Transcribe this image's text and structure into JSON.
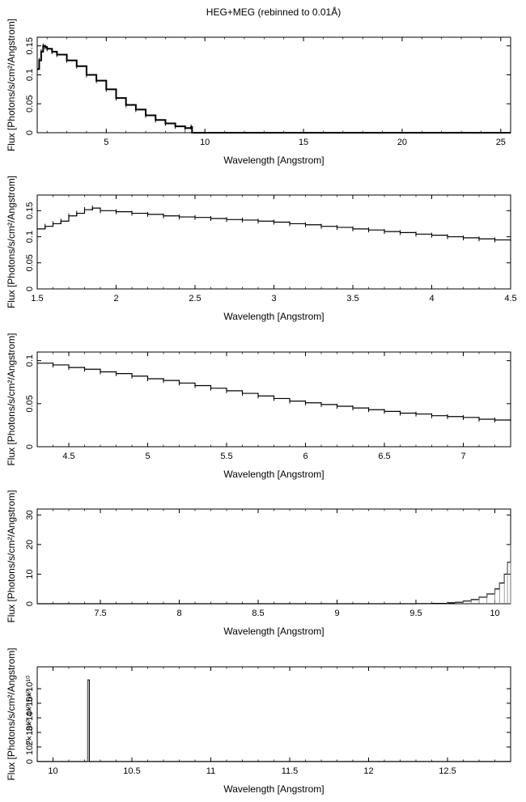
{
  "title": "HEG+MEG (rebinned to 0.01Å)",
  "chart_data": [
    {
      "type": "line",
      "xlabel": "Wavelength [Angstrom]",
      "ylabel": "Flux [Photons/s/cm²/Angstrom]",
      "xlim": [
        1.5,
        25.5
      ],
      "ylim": [
        0,
        0.165
      ],
      "xticks": [
        5,
        10,
        15,
        20,
        25
      ],
      "yticks": [
        0,
        0.05,
        0.1,
        0.15
      ],
      "ytick_labels": [
        "0",
        "0.05",
        "0.1",
        "0.15"
      ],
      "grid": false,
      "series": [
        {
          "x": [
            1.5,
            1.6,
            1.7,
            1.8,
            1.9,
            2.0,
            2.25,
            2.5,
            3.0,
            3.5,
            4.0,
            4.5,
            5.0,
            5.5,
            6.0,
            6.5,
            7.0,
            7.5,
            8.0,
            8.5,
            9.0,
            9.3,
            9.35,
            25.5
          ],
          "y": [
            0.11,
            0.125,
            0.14,
            0.15,
            0.148,
            0.145,
            0.14,
            0.135,
            0.125,
            0.115,
            0.1,
            0.09,
            0.075,
            0.06,
            0.048,
            0.04,
            0.03,
            0.022,
            0.016,
            0.011,
            0.008,
            0.01,
            0.0,
            0.0
          ]
        }
      ]
    },
    {
      "type": "line",
      "xlabel": "Wavelength [Angstrom]",
      "ylabel": "Flux [Photons/s/cm²/Angstrom]",
      "xlim": [
        1.5,
        4.5
      ],
      "ylim": [
        0,
        0.18
      ],
      "xticks": [
        1.5,
        2,
        2.5,
        3,
        3.5,
        4,
        4.5
      ],
      "yticks": [
        0,
        0.05,
        0.1,
        0.15
      ],
      "ytick_labels": [
        "0",
        "0.05",
        "0.1",
        "0.15"
      ],
      "grid": false,
      "series": [
        {
          "x": [
            1.5,
            1.55,
            1.6,
            1.65,
            1.7,
            1.75,
            1.8,
            1.85,
            1.9,
            2.0,
            2.1,
            2.2,
            2.3,
            2.4,
            2.5,
            2.6,
            2.7,
            2.8,
            2.9,
            3.0,
            3.1,
            3.2,
            3.3,
            3.4,
            3.5,
            3.6,
            3.7,
            3.8,
            3.9,
            4.0,
            4.1,
            4.2,
            4.3,
            4.4,
            4.5
          ],
          "y": [
            0.115,
            0.12,
            0.125,
            0.13,
            0.14,
            0.145,
            0.152,
            0.155,
            0.15,
            0.148,
            0.145,
            0.143,
            0.14,
            0.138,
            0.137,
            0.135,
            0.133,
            0.132,
            0.13,
            0.128,
            0.125,
            0.123,
            0.12,
            0.118,
            0.115,
            0.113,
            0.11,
            0.108,
            0.105,
            0.103,
            0.1,
            0.098,
            0.096,
            0.094,
            0.092
          ]
        }
      ]
    },
    {
      "type": "line",
      "xlabel": "Wavelength [Angstrom]",
      "ylabel": "Flux [Photons/s/cm²/Angstrom]",
      "xlim": [
        4.3,
        7.3
      ],
      "ylim": [
        0,
        0.11
      ],
      "xticks": [
        4.5,
        5,
        5.5,
        6,
        6.5,
        7
      ],
      "yticks": [
        0,
        0.05,
        0.1
      ],
      "ytick_labels": [
        "0",
        "0.05",
        "0.1"
      ],
      "grid": false,
      "series": [
        {
          "x": [
            4.3,
            4.4,
            4.5,
            4.6,
            4.7,
            4.8,
            4.9,
            5.0,
            5.1,
            5.2,
            5.3,
            5.4,
            5.5,
            5.6,
            5.7,
            5.8,
            5.9,
            6.0,
            6.1,
            6.2,
            6.3,
            6.4,
            6.5,
            6.6,
            6.7,
            6.8,
            6.9,
            7.0,
            7.1,
            7.2,
            7.3
          ],
          "y": [
            0.097,
            0.095,
            0.092,
            0.09,
            0.087,
            0.085,
            0.082,
            0.079,
            0.077,
            0.074,
            0.071,
            0.068,
            0.065,
            0.062,
            0.059,
            0.056,
            0.053,
            0.051,
            0.049,
            0.047,
            0.045,
            0.043,
            0.041,
            0.039,
            0.038,
            0.036,
            0.035,
            0.034,
            0.032,
            0.031,
            0.03
          ]
        }
      ]
    },
    {
      "type": "line",
      "xlabel": "Wavelength [Angstrom]",
      "ylabel": "Flux [Photons/s/cm²/Angstrom]",
      "xlim": [
        7.1,
        10.1
      ],
      "ylim": [
        0,
        32
      ],
      "xticks": [
        7.5,
        8,
        8.5,
        9,
        9.5,
        10
      ],
      "yticks": [
        0,
        10,
        20,
        30
      ],
      "ytick_labels": [
        "0",
        "10",
        "20",
        "30"
      ],
      "grid": false,
      "series": [
        {
          "x": [
            7.1,
            9.5,
            9.6,
            9.7,
            9.75,
            9.8,
            9.85,
            9.9,
            9.95,
            10.0,
            10.03,
            10.06,
            10.08,
            10.1
          ],
          "y": [
            0.0,
            0.05,
            0.1,
            0.3,
            0.5,
            0.9,
            1.4,
            2.2,
            3.3,
            5.0,
            7.0,
            10.0,
            14.0,
            20.0
          ]
        }
      ]
    },
    {
      "type": "line",
      "xlabel": "Wavelength [Angstrom]",
      "ylabel": "Flux [Photons/s/cm²/Angstrom]",
      "xlim": [
        9.9,
        12.9
      ],
      "ylim": [
        0,
        65000000000.0
      ],
      "xticks": [
        10,
        10.5,
        11,
        11.5,
        12,
        12.5
      ],
      "yticks": [
        0,
        10000000000.0,
        20000000000.0,
        30000000000.0,
        40000000000.0,
        50000000000.0
      ],
      "ytick_labels": [
        "0",
        "10¹⁰",
        "2×10¹⁰",
        "3×10¹⁰",
        "4×10¹⁰",
        "5×10¹⁰"
      ],
      "grid": false,
      "series": [
        {
          "x": [
            9.9,
            10.21,
            10.22,
            10.23,
            12.9
          ],
          "y": [
            0,
            0,
            56000000000.0,
            0,
            0
          ]
        }
      ]
    }
  ]
}
